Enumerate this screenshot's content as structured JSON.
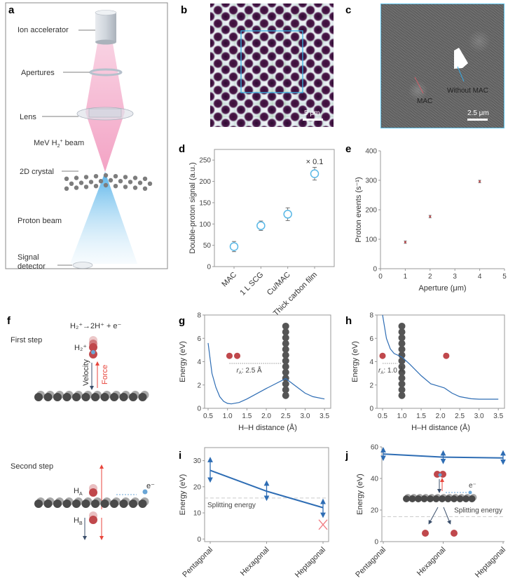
{
  "panel_labels": {
    "a": "a",
    "b": "b",
    "c": "c",
    "d": "d",
    "e": "e",
    "f": "f",
    "g": "g",
    "h": "h",
    "i": "i",
    "j": "j"
  },
  "panel_a": {
    "ion_accelerator": "Ion accelerator",
    "apertures": "Apertures",
    "lens": "Lens",
    "beam_prefix": "MeV H",
    "beam_sub": "2",
    "beam_sup": "+",
    "beam_suffix": " beam",
    "crystal": "2D crystal",
    "proton_beam": "Proton beam",
    "signal": "Signal",
    "detector": "detector",
    "colors": {
      "ion_beam": "#f3a9c8",
      "proton_beam": "#5ab4e6"
    }
  },
  "panel_b": {
    "scale_bar": "5 μm",
    "box_color": "#39b3e6"
  },
  "panel_c": {
    "mac": "MAC",
    "without_mac": "Without MAC",
    "scale_bar": "2.5 μm"
  },
  "panel_f": {
    "reaction": "H₂⁺→2H⁺ + e⁻",
    "first_step": "First step",
    "h2": "H₂⁺",
    "velocity": "Velocity",
    "force": "Force",
    "second_step": "Second step",
    "ha": "H",
    "ha_sub": "A",
    "hb": "H",
    "hb_sub": "B",
    "electron": "e⁻",
    "colors": {
      "force": "#e8463c",
      "velocity": "#3b4f6b",
      "atom": "#c0484c",
      "electron": "#6aa6d6"
    }
  },
  "chart_data": [
    {
      "id": "d",
      "type": "scatter",
      "categories": [
        "MAC",
        "1 L SCG",
        "Cu/MAC",
        "Thick carbon film"
      ],
      "values": [
        47,
        96,
        123,
        218
      ],
      "errors": [
        12,
        11,
        15,
        15
      ],
      "ylabel": "Double-proton signal (a.u.)",
      "xlabel": "",
      "ylim": [
        0,
        275
      ],
      "yticks": [
        "0",
        "50",
        "100",
        "150",
        "200",
        "250"
      ],
      "annotation": "× 0.1",
      "marker_color": "#5ab8e6",
      "grid": false
    },
    {
      "id": "e",
      "type": "scatter",
      "x": [
        1,
        2,
        4
      ],
      "y": [
        90,
        177,
        296
      ],
      "errors": [
        4,
        4,
        4
      ],
      "xlabel": "Aperture (μm)",
      "ylabel": "Proton events (s⁻¹)",
      "xlim": [
        0,
        5
      ],
      "ylim": [
        0,
        400
      ],
      "xticks": [
        "0",
        "1",
        "2",
        "3",
        "4",
        "5"
      ],
      "yticks": [
        "0",
        "100",
        "200",
        "300",
        "400"
      ],
      "marker_color": "#c0484c",
      "grid": false
    },
    {
      "id": "g",
      "type": "line",
      "x": [
        0.5,
        0.6,
        0.7,
        0.8,
        0.9,
        1.0,
        1.1,
        1.3,
        1.5,
        2.0,
        2.5,
        2.8,
        3.0,
        3.2,
        3.5
      ],
      "y": [
        5.6,
        3.0,
        1.8,
        1.0,
        0.6,
        0.42,
        0.38,
        0.5,
        0.8,
        1.7,
        2.55,
        1.8,
        1.3,
        1.0,
        0.8
      ],
      "xlabel": "H–H distance (Å)",
      "ylabel": "Energy (eV)",
      "xlim": [
        0.41,
        3.66
      ],
      "ylim": [
        0,
        8
      ],
      "xticks": [
        "0.5",
        "1.0",
        "1.5",
        "2.0",
        "2.5",
        "3.0",
        "3.5"
      ],
      "yticks": [
        "0",
        "2",
        "4",
        "6",
        "8"
      ],
      "annotation": {
        "r": "r",
        "sub": "A",
        "text": ": 2.5 Å"
      },
      "carbon_x": 2.5,
      "atoms_x": [
        1.05,
        1.25
      ],
      "line_color": "#2e6db4"
    },
    {
      "id": "h",
      "type": "line",
      "x": [
        0.5,
        0.6,
        0.7,
        0.8,
        1.0,
        1.2,
        1.5,
        1.75,
        2.0,
        2.1,
        2.3,
        2.5,
        2.8,
        3.0,
        3.5
      ],
      "y": [
        8.0,
        6.0,
        5.1,
        4.7,
        4.4,
        3.8,
        2.8,
        2.1,
        1.85,
        1.75,
        1.3,
        1.0,
        0.82,
        0.78,
        0.78
      ],
      "xlabel": "H–H distance (Å)",
      "ylabel": "Energy (eV)",
      "xlim": [
        0.355,
        3.66
      ],
      "ylim": [
        0,
        8
      ],
      "xticks": [
        "0.5",
        "1.0",
        "1.5",
        "2.0",
        "2.5",
        "3.0",
        "3.5"
      ],
      "yticks": [
        "0",
        "2",
        "4",
        "6",
        "8"
      ],
      "annotation": {
        "r": "r",
        "sub": "A",
        "text": ": 1.0 Å"
      },
      "carbon_x": 1.0,
      "atoms_x": [
        0.5,
        2.15
      ],
      "line_color": "#2e6db4"
    },
    {
      "id": "i",
      "type": "line",
      "categories": [
        "Pentagonal",
        "Hexagonal",
        "Heptagonal"
      ],
      "values": [
        26.3,
        18.3,
        12.0
      ],
      "ranges": [
        [
          21.5,
          31.5
        ],
        [
          14.5,
          22.5
        ],
        [
          8,
          15.5
        ]
      ],
      "ylabel": "Energy (eV)",
      "xlabel": "",
      "ylim": [
        -1,
        35
      ],
      "yticks": [
        "0",
        "10",
        "20",
        "30"
      ],
      "reference": {
        "label": "Splitting energy",
        "value": 15.7
      },
      "failed_marker": {
        "category": "Heptagonal",
        "value": 5.5
      },
      "line_color": "#2e6db4"
    },
    {
      "id": "j",
      "type": "line",
      "categories": [
        "Pentagonal",
        "Hexagonal",
        "Heptagonal"
      ],
      "values": [
        55.5,
        53.5,
        53.0
      ],
      "ranges": [
        [
          51,
          60
        ],
        [
          49,
          58
        ],
        [
          48.5,
          58
        ]
      ],
      "ylabel": "Energy (eV)",
      "xlabel": "",
      "ylim": [
        0,
        60
      ],
      "yticks": [
        "0",
        "20",
        "40",
        "60"
      ],
      "reference": {
        "label": "Splitting energy",
        "value": 15.8
      },
      "electron": "e⁻",
      "line_color": "#2e6db4"
    }
  ]
}
